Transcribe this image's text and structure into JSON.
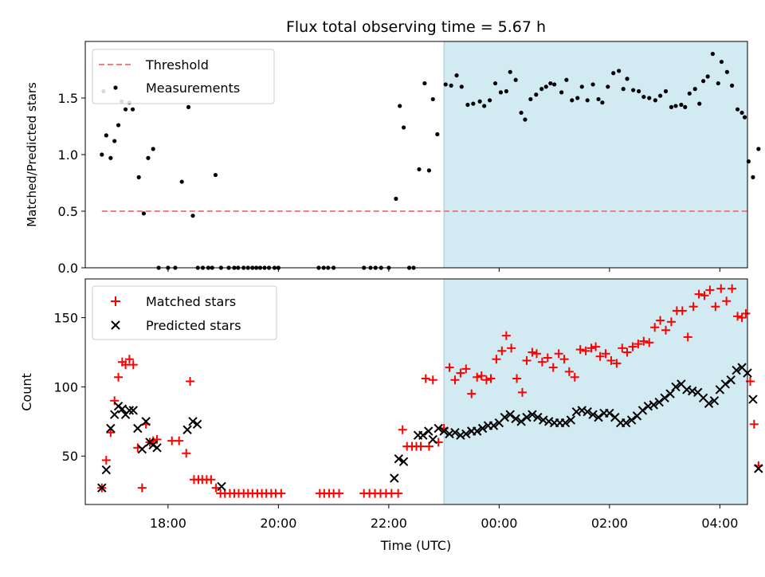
{
  "chart_data": [
    {
      "type": "scatter",
      "title": "Flux total observing time = 5.67 h",
      "xlabel": "",
      "ylabel": "Matched/Predicted stars",
      "xlim": [
        16.5,
        28.5
      ],
      "ylim": [
        0,
        2.0
      ],
      "yticks": [
        0.0,
        0.5,
        1.0,
        1.5
      ],
      "ytick_labels": [
        "0.0",
        "0.5",
        "1.0",
        "1.5"
      ],
      "shaded_span": {
        "x": [
          23.0,
          28.7
        ],
        "color": "#add8e6"
      },
      "threshold": {
        "name": "Threshold",
        "y": 0.5,
        "x": [
          16.8,
          28.7
        ],
        "color": "#f08080",
        "style": "dashed"
      },
      "legend": {
        "position": "upper-left",
        "entries": [
          "Threshold",
          "Measurements"
        ]
      },
      "series": [
        {
          "name": "Measurements",
          "color": "#000000",
          "marker": "dot",
          "x": [
            16.8,
            16.83,
            16.88,
            16.96,
            17.03,
            17.1,
            17.16,
            17.23,
            17.3,
            17.36,
            17.47,
            17.56,
            17.64,
            17.73,
            17.83,
            18.0,
            18.13,
            18.25,
            18.37,
            18.45,
            18.54,
            18.63,
            18.73,
            18.8,
            18.86,
            18.96,
            19.1,
            19.2,
            19.27,
            19.37,
            19.45,
            19.53,
            19.6,
            19.67,
            19.75,
            19.83,
            19.93,
            20.0,
            20.73,
            20.82,
            20.9,
            21.0,
            21.55,
            21.67,
            21.76,
            21.86,
            22.0,
            22.13,
            22.2,
            22.27,
            22.37,
            22.45,
            22.55,
            22.65,
            22.73,
            22.8,
            22.88,
            23.03,
            23.13,
            23.23,
            23.32,
            23.43,
            23.53,
            23.65,
            23.73,
            23.83,
            23.93,
            24.03,
            24.13,
            24.2,
            24.3,
            24.4,
            24.47,
            24.57,
            24.67,
            24.77,
            24.85,
            24.93,
            25.0,
            25.13,
            25.22,
            25.32,
            25.42,
            25.5,
            25.6,
            25.7,
            25.8,
            25.87,
            25.97,
            26.07,
            26.17,
            26.25,
            26.32,
            26.43,
            26.53,
            26.62,
            26.72,
            26.83,
            26.92,
            27.02,
            27.12,
            27.2,
            27.3,
            27.37,
            27.45,
            27.55,
            27.63,
            27.7,
            27.78,
            27.87,
            27.97,
            28.03,
            28.13,
            28.22,
            28.32,
            28.4,
            28.45,
            28.52,
            28.6,
            28.7
          ],
          "y": [
            1.0,
            1.56,
            1.17,
            0.97,
            1.12,
            1.26,
            1.47,
            1.4,
            1.46,
            1.4,
            0.8,
            0.48,
            0.97,
            1.05,
            0.0,
            0.0,
            0.0,
            0.76,
            1.42,
            0.46,
            0.0,
            0.0,
            0.0,
            0.0,
            0.82,
            0.0,
            0.0,
            0.0,
            0.0,
            0.0,
            0.0,
            0.0,
            0.0,
            0.0,
            0.0,
            0.0,
            0.0,
            0.0,
            0.0,
            0.0,
            0.0,
            0.0,
            0.0,
            0.0,
            0.0,
            0.0,
            0.0,
            0.61,
            1.43,
            1.24,
            0.0,
            0.0,
            0.87,
            1.63,
            0.86,
            1.49,
            1.18,
            1.62,
            1.61,
            1.7,
            1.6,
            1.44,
            1.45,
            1.47,
            1.43,
            1.48,
            1.63,
            1.55,
            1.56,
            1.73,
            1.66,
            1.37,
            1.31,
            1.49,
            1.53,
            1.58,
            1.6,
            1.63,
            1.62,
            1.55,
            1.66,
            1.48,
            1.5,
            1.6,
            1.48,
            1.62,
            1.49,
            1.46,
            1.6,
            1.72,
            1.74,
            1.58,
            1.67,
            1.57,
            1.56,
            1.51,
            1.5,
            1.48,
            1.52,
            1.56,
            1.42,
            1.43,
            1.44,
            1.42,
            1.54,
            1.58,
            1.45,
            1.65,
            1.69,
            1.89,
            1.63,
            1.82,
            1.73,
            1.61,
            1.4,
            1.37,
            1.33,
            0.94,
            0.8,
            1.05
          ]
        }
      ]
    },
    {
      "type": "scatter",
      "title": "",
      "xlabel": "Time (UTC)",
      "ylabel": "Count",
      "xlim": [
        16.5,
        28.5
      ],
      "ylim": [
        15,
        178
      ],
      "xticks": [
        18,
        20,
        22,
        24,
        26,
        28
      ],
      "xtick_labels": [
        "18:00",
        "20:00",
        "22:00",
        "00:00",
        "02:00",
        "04:00"
      ],
      "yticks": [
        50,
        100,
        150
      ],
      "ytick_labels": [
        "50",
        "100",
        "150"
      ],
      "shaded_span": {
        "x": [
          23.0,
          28.7
        ],
        "color": "#add8e6"
      },
      "legend": {
        "position": "upper-left",
        "entries": [
          "Matched stars",
          "Predicted stars"
        ]
      },
      "series": [
        {
          "name": "Matched stars",
          "color": "#ff0000",
          "marker": "plus",
          "x": [
            16.8,
            16.88,
            16.96,
            17.03,
            17.1,
            17.17,
            17.23,
            17.3,
            17.37,
            17.45,
            17.53,
            17.6,
            17.67,
            17.73,
            17.8,
            18.07,
            18.2,
            18.33,
            18.4,
            18.47,
            18.55,
            18.62,
            18.7,
            18.78,
            18.87,
            18.95,
            19.03,
            19.12,
            19.2,
            19.28,
            19.37,
            19.45,
            19.53,
            19.62,
            19.7,
            19.78,
            19.87,
            19.95,
            20.05,
            20.75,
            20.83,
            20.92,
            21.0,
            21.1,
            21.55,
            21.65,
            21.75,
            21.85,
            21.95,
            22.05,
            22.17,
            22.25,
            22.33,
            22.42,
            22.5,
            22.58,
            22.67,
            22.73,
            22.8,
            22.9,
            23.0,
            23.1,
            23.2,
            23.3,
            23.4,
            23.5,
            23.6,
            23.68,
            23.77,
            23.85,
            23.95,
            24.05,
            24.13,
            24.22,
            24.32,
            24.42,
            24.5,
            24.6,
            24.68,
            24.78,
            24.88,
            24.98,
            25.08,
            25.18,
            25.27,
            25.37,
            25.47,
            25.57,
            25.67,
            25.75,
            25.83,
            25.93,
            26.03,
            26.13,
            26.23,
            26.32,
            26.42,
            26.52,
            26.62,
            26.72,
            26.82,
            26.92,
            27.02,
            27.12,
            27.22,
            27.32,
            27.42,
            27.52,
            27.62,
            27.72,
            27.82,
            27.92,
            28.02,
            28.12,
            28.22,
            28.32,
            28.4,
            28.47,
            28.55,
            28.62,
            28.7
          ],
          "y": [
            27,
            47,
            67,
            90,
            107,
            118,
            116,
            120,
            116,
            56,
            27,
            73,
            60,
            61,
            62,
            61,
            61,
            52,
            104,
            33,
            33,
            33,
            33,
            33,
            27,
            23,
            23,
            23,
            23,
            23,
            23,
            23,
            23,
            23,
            23,
            23,
            23,
            23,
            23,
            23,
            23,
            23,
            23,
            23,
            23,
            23,
            23,
            23,
            23,
            23,
            23,
            69,
            57,
            57,
            57,
            57,
            106,
            57,
            105,
            60,
            70,
            114,
            105,
            110,
            113,
            95,
            107,
            108,
            105,
            106,
            120,
            126,
            137,
            128,
            106,
            96,
            119,
            125,
            124,
            118,
            121,
            114,
            124,
            120,
            111,
            107,
            127,
            126,
            128,
            129,
            122,
            124,
            119,
            117,
            128,
            125,
            129,
            131,
            133,
            132,
            143,
            148,
            141,
            147,
            155,
            155,
            136,
            158,
            167,
            166,
            170,
            158,
            171,
            162,
            171,
            151,
            150,
            153,
            104,
            73,
            43
          ]
        },
        {
          "name": "Predicted stars",
          "color": "#000000",
          "marker": "x",
          "x": [
            16.8,
            16.88,
            16.96,
            17.03,
            17.1,
            17.17,
            17.23,
            17.3,
            17.37,
            17.45,
            17.53,
            17.6,
            17.67,
            17.73,
            17.8,
            18.35,
            18.45,
            18.53,
            18.97,
            22.1,
            22.18,
            22.27,
            22.53,
            22.62,
            22.72,
            22.8,
            22.9,
            23.0,
            23.1,
            23.2,
            23.3,
            23.4,
            23.5,
            23.6,
            23.7,
            23.8,
            23.9,
            24.0,
            24.1,
            24.2,
            24.3,
            24.4,
            24.5,
            24.6,
            24.7,
            24.8,
            24.9,
            25.0,
            25.1,
            25.2,
            25.3,
            25.4,
            25.5,
            25.6,
            25.7,
            25.8,
            25.9,
            26.0,
            26.1,
            26.2,
            26.3,
            26.4,
            26.5,
            26.6,
            26.7,
            26.8,
            26.9,
            27.0,
            27.1,
            27.2,
            27.3,
            27.4,
            27.5,
            27.6,
            27.7,
            27.8,
            27.9,
            28.0,
            28.1,
            28.2,
            28.3,
            28.4,
            28.5,
            28.6,
            28.7
          ],
          "y": [
            27,
            40,
            70,
            80,
            86,
            84,
            80,
            83,
            83,
            70,
            55,
            75,
            60,
            58,
            56,
            69,
            75,
            73,
            28,
            34,
            48,
            46,
            65,
            65,
            68,
            62,
            70,
            68,
            66,
            67,
            65,
            66,
            68,
            68,
            70,
            72,
            72,
            74,
            78,
            80,
            77,
            75,
            78,
            80,
            78,
            76,
            75,
            74,
            74,
            74,
            76,
            82,
            83,
            82,
            80,
            78,
            81,
            81,
            78,
            74,
            74,
            76,
            79,
            83,
            86,
            87,
            89,
            92,
            95,
            100,
            102,
            98,
            97,
            96,
            92,
            88,
            90,
            98,
            102,
            105,
            112,
            114,
            110,
            91,
            41
          ]
        }
      ]
    }
  ]
}
